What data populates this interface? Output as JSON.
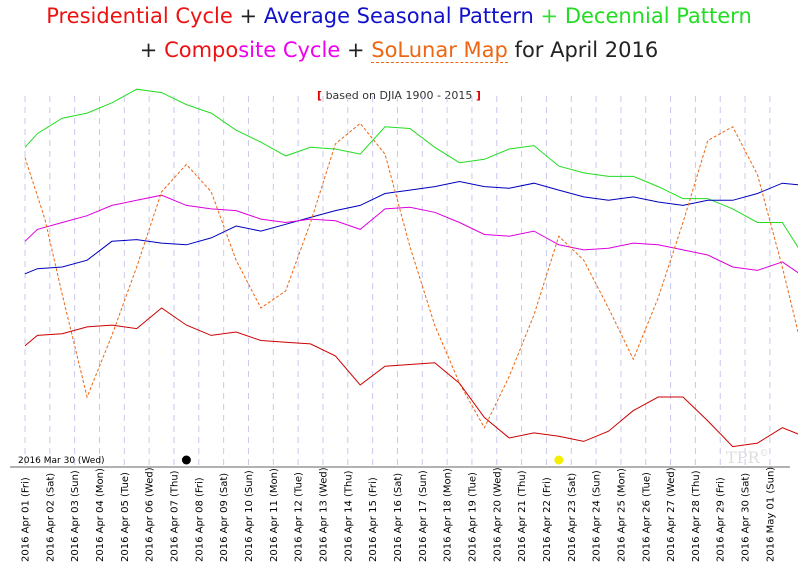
{
  "title": {
    "presidential": "Presidential Cycle",
    "seasonal": "Average Seasonal Pattern",
    "decennial": "Decennial Pattern",
    "composite_a": "Compo",
    "composite_b": "site",
    "composite_c": "Cycle",
    "solunar": "SoLunar Map",
    "suffix": "for April 2016",
    "plus": "+"
  },
  "subtitle": {
    "open": "[",
    "text": "based on DJIA 1900 - 2015",
    "close": "]"
  },
  "start_label": "2016 Mar 30 (Wed)",
  "watermark": "TPR",
  "watermark_sup": "©",
  "chart_data": {
    "type": "line",
    "x": [
      "2016 Apr 01 (Fri)",
      "2016 Apr 02 (Sat)",
      "2016 Apr 03 (Sun)",
      "2016 Apr 04 (Mon)",
      "2016 Apr 05 (Tue)",
      "2016 Apr 06 (Wed)",
      "2016 Apr 07 (Thu)",
      "2016 Apr 08 (Fri)",
      "2016 Apr 09 (Sat)",
      "2016 Apr 10 (Sun)",
      "2016 Apr 11 (Mon)",
      "2016 Apr 12 (Tue)",
      "2016 Apr 13 (Wed)",
      "2016 Apr 14 (Thu)",
      "2016 Apr 15 (Fri)",
      "2016 Apr 16 (Sat)",
      "2016 Apr 17 (Sun)",
      "2016 Apr 18 (Mon)",
      "2016 Apr 19 (Tue)",
      "2016 Apr 20 (Wed)",
      "2016 Apr 21 (Thu)",
      "2016 Apr 22 (Fri)",
      "2016 Apr 23 (Sat)",
      "2016 Apr 24 (Sun)",
      "2016 Apr 25 (Mon)",
      "2016 Apr 26 (Tue)",
      "2016 Apr 27 (Wed)",
      "2016 Apr 28 (Thu)",
      "2016 Apr 29 (Fri)",
      "2016 Apr 30 (Sat)",
      "2016 May 01 (Sun)"
    ],
    "ylim": [
      0,
      100
    ],
    "grid": "vertical dashed",
    "series": [
      {
        "name": "Decennial Pattern",
        "color": "#22dd22",
        "dash": "solid",
        "values": [
          [
            0,
            85
          ],
          [
            0.5,
            89
          ],
          [
            1.5,
            93.5
          ],
          [
            2.5,
            95
          ],
          [
            3.5,
            98
          ],
          [
            4.5,
            102
          ],
          [
            5.5,
            101
          ],
          [
            6.5,
            97.5
          ],
          [
            7.5,
            95
          ],
          [
            8.5,
            90
          ],
          [
            9.5,
            86.5
          ],
          [
            10.5,
            82.5
          ],
          [
            11.5,
            85
          ],
          [
            12.5,
            84.5
          ],
          [
            13.5,
            83
          ],
          [
            14.5,
            91
          ],
          [
            15.5,
            90.5
          ],
          [
            16.5,
            85
          ],
          [
            17.5,
            80.5
          ],
          [
            18.5,
            81.5
          ],
          [
            19.5,
            84.5
          ],
          [
            20.5,
            85.5
          ],
          [
            21.5,
            79.5
          ],
          [
            22.5,
            77.5
          ],
          [
            23.5,
            76.5
          ],
          [
            24.5,
            76.5
          ],
          [
            25.5,
            73.5
          ],
          [
            26.5,
            70
          ],
          [
            27.5,
            70
          ],
          [
            28.5,
            67
          ],
          [
            29.5,
            63
          ],
          [
            30.5,
            63
          ],
          [
            31.2,
            55
          ]
        ]
      },
      {
        "name": "Average Seasonal Pattern",
        "color": "#0000bb",
        "dash": "solid",
        "values": [
          [
            0,
            48
          ],
          [
            0.5,
            49.5
          ],
          [
            1.5,
            50
          ],
          [
            2.5,
            52
          ],
          [
            3.5,
            57.5
          ],
          [
            4.5,
            58
          ],
          [
            5.5,
            57
          ],
          [
            6.5,
            56.5
          ],
          [
            7.5,
            58.5
          ],
          [
            8.5,
            62
          ],
          [
            9.5,
            60.5
          ],
          [
            10.5,
            62.5
          ],
          [
            11.5,
            64.5
          ],
          [
            12.5,
            66.5
          ],
          [
            13.5,
            68
          ],
          [
            14.5,
            71.5
          ],
          [
            15.5,
            72.5
          ],
          [
            16.5,
            73.5
          ],
          [
            17.5,
            75
          ],
          [
            18.5,
            73.5
          ],
          [
            19.5,
            73
          ],
          [
            20.5,
            74.5
          ],
          [
            21.5,
            72.5
          ],
          [
            22.5,
            70.5
          ],
          [
            23.5,
            69.5
          ],
          [
            24.5,
            70.5
          ],
          [
            25.5,
            69
          ],
          [
            26.5,
            68
          ],
          [
            27.5,
            69.5
          ],
          [
            28.5,
            69.5
          ],
          [
            29.5,
            71.5
          ],
          [
            30.5,
            74.5
          ],
          [
            31.2,
            74
          ]
        ]
      },
      {
        "name": "Composite Cycle",
        "color": "#dd00dd",
        "dash": "solid",
        "values": [
          [
            0,
            57.5
          ],
          [
            0.5,
            61
          ],
          [
            1.5,
            63
          ],
          [
            2.5,
            65
          ],
          [
            3.5,
            68
          ],
          [
            4.5,
            69.5
          ],
          [
            5.5,
            71
          ],
          [
            6.5,
            68
          ],
          [
            7.5,
            67
          ],
          [
            8.5,
            66.5
          ],
          [
            9.5,
            64
          ],
          [
            10.5,
            63
          ],
          [
            11.5,
            64
          ],
          [
            12.5,
            63.5
          ],
          [
            13.5,
            61
          ],
          [
            14.5,
            67
          ],
          [
            15.5,
            67.5
          ],
          [
            16.5,
            66
          ],
          [
            17.5,
            63
          ],
          [
            18.5,
            59.5
          ],
          [
            19.5,
            59
          ],
          [
            20.5,
            60.5
          ],
          [
            21.5,
            56.5
          ],
          [
            22.5,
            55
          ],
          [
            23.5,
            55.5
          ],
          [
            24.5,
            57
          ],
          [
            25.5,
            56.5
          ],
          [
            26.5,
            55
          ],
          [
            27.5,
            53.5
          ],
          [
            28.5,
            50
          ],
          [
            29.5,
            49
          ],
          [
            30.5,
            51.5
          ],
          [
            31.2,
            48
          ]
        ]
      },
      {
        "name": "SoLunar Map",
        "color": "#ee6611",
        "dash": "dashed",
        "values": [
          [
            0,
            82
          ],
          [
            0.8,
            64
          ],
          [
            1.5,
            42
          ],
          [
            2.5,
            12
          ],
          [
            3.5,
            30
          ],
          [
            4.5,
            50
          ],
          [
            5.5,
            72
          ],
          [
            6.5,
            80
          ],
          [
            7.5,
            72
          ],
          [
            8.5,
            52
          ],
          [
            9.5,
            38
          ],
          [
            10.5,
            43
          ],
          [
            11.5,
            63
          ],
          [
            12.5,
            86
          ],
          [
            13.5,
            92
          ],
          [
            14.5,
            83
          ],
          [
            15.5,
            56
          ],
          [
            16.5,
            33
          ],
          [
            17.5,
            16
          ],
          [
            18.5,
            3
          ],
          [
            19.5,
            18
          ],
          [
            20.5,
            36
          ],
          [
            21.5,
            59
          ],
          [
            22.5,
            52
          ],
          [
            23.5,
            38
          ],
          [
            24.5,
            23
          ],
          [
            25.5,
            41
          ],
          [
            26.5,
            63
          ],
          [
            27.5,
            87
          ],
          [
            28.5,
            91
          ],
          [
            29.5,
            77
          ],
          [
            30.5,
            50
          ],
          [
            31.2,
            29
          ]
        ]
      },
      {
        "name": "Presidential Cycle",
        "color": "#cc0000",
        "dash": "solid",
        "values": [
          [
            0,
            27
          ],
          [
            0.5,
            30
          ],
          [
            1.5,
            30.5
          ],
          [
            2.5,
            32.5
          ],
          [
            3.5,
            33
          ],
          [
            4.5,
            32
          ],
          [
            5.5,
            38
          ],
          [
            6.5,
            33
          ],
          [
            7.5,
            30
          ],
          [
            8.5,
            31
          ],
          [
            9.5,
            28.5
          ],
          [
            10.5,
            28
          ],
          [
            11.5,
            27.5
          ],
          [
            12.5,
            24
          ],
          [
            13.5,
            15.5
          ],
          [
            14.5,
            21
          ],
          [
            15.5,
            21.5
          ],
          [
            16.5,
            22
          ],
          [
            17.5,
            16
          ],
          [
            18.5,
            6
          ],
          [
            19.5,
            0
          ],
          [
            20.5,
            1.5
          ],
          [
            21.5,
            0.5
          ],
          [
            22.5,
            -1
          ],
          [
            23.5,
            2
          ],
          [
            24.5,
            8
          ],
          [
            25.5,
            12
          ],
          [
            26.5,
            12
          ],
          [
            27.5,
            5
          ],
          [
            28.5,
            -2.5
          ],
          [
            29.5,
            -1.5
          ],
          [
            30.5,
            3
          ],
          [
            31.2,
            1
          ]
        ]
      }
    ],
    "markers": [
      {
        "x": 6.5,
        "type": "new-moon",
        "color": "#000000"
      },
      {
        "x": 21.5,
        "type": "full-moon",
        "color": "#f5ee00"
      }
    ]
  }
}
